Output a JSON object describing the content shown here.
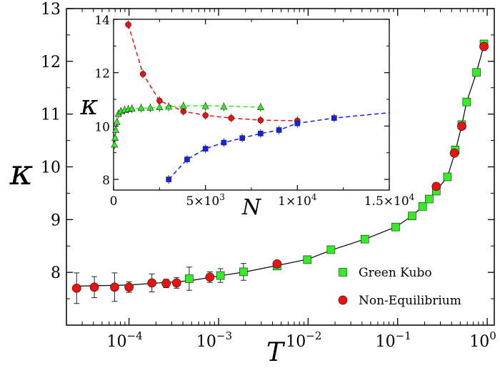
{
  "chart_data": [
    {
      "type": "scatter",
      "xscale": "log",
      "xlim": [
        2e-05,
        1.2
      ],
      "ylim": [
        7.0,
        13.0
      ],
      "xlabel": "T",
      "ylabel": "κ",
      "yticks": [
        "8",
        "9",
        "10",
        "11",
        "12",
        "13"
      ],
      "xticks": [
        {
          "base": "10",
          "exp": "−4",
          "value": 0.0001
        },
        {
          "base": "10",
          "exp": "−3",
          "value": 0.001
        },
        {
          "base": "10",
          "exp": "−2",
          "value": 0.01
        },
        {
          "base": "10",
          "exp": "−1",
          "value": 0.1
        },
        {
          "base": "10",
          "exp": "0",
          "value": 1
        }
      ],
      "legend_position": "bottom-right",
      "series": [
        {
          "name": "Green Kubo",
          "marker": "square",
          "color": "#33ee22",
          "points": [
            [
              0.00047,
              7.88,
              0.22
            ],
            [
              0.00105,
              7.94,
              0.13
            ],
            [
              0.0019,
              8.01,
              0.16
            ],
            [
              0.0045,
              8.12,
              0.07
            ],
            [
              0.0098,
              8.24,
              0.07
            ],
            [
              0.018,
              8.43,
              0.05
            ],
            [
              0.043,
              8.63,
              0.05
            ],
            [
              0.095,
              8.86,
              0.05
            ],
            [
              0.145,
              9.07,
              0.05
            ],
            [
              0.19,
              9.25,
              0.05
            ],
            [
              0.225,
              9.39,
              0.05
            ],
            [
              0.27,
              9.54,
              0.05
            ],
            [
              0.36,
              9.81,
              0.05
            ],
            [
              0.44,
              10.32,
              0.05
            ],
            [
              0.52,
              10.8,
              0.05
            ],
            [
              0.59,
              11.23,
              0.05
            ],
            [
              0.76,
              11.79,
              0.05
            ],
            [
              0.92,
              12.33,
              0.05
            ]
          ]
        },
        {
          "name": "Non-Equilibrium",
          "marker": "circle",
          "color": "#ee1111",
          "points": [
            [
              2.6e-05,
              7.7,
              0.29
            ],
            [
              4.1e-05,
              7.72,
              0.2
            ],
            [
              6.9e-05,
              7.72,
              0.27
            ],
            [
              0.0001,
              7.72,
              0.1
            ],
            [
              0.00018,
              7.8,
              0.17
            ],
            [
              0.00026,
              7.79,
              0.08
            ],
            [
              0.00034,
              7.8,
              0.1
            ],
            [
              0.0008,
              7.91,
              0.1
            ],
            [
              0.0045,
              8.16,
              0.05
            ],
            [
              0.27,
              9.63,
              0.05
            ],
            [
              0.43,
              10.26,
              0.05
            ],
            [
              0.52,
              10.77,
              0.05
            ],
            [
              0.92,
              12.28,
              0.05
            ]
          ]
        }
      ],
      "curve": [
        [
          2.6e-05,
          7.74
        ],
        [
          0.0001,
          7.76
        ],
        [
          0.00047,
          7.84
        ],
        [
          0.001,
          7.93
        ],
        [
          0.002,
          8.01
        ],
        [
          0.0045,
          8.13
        ],
        [
          0.01,
          8.25
        ],
        [
          0.018,
          8.42
        ],
        [
          0.043,
          8.63
        ],
        [
          0.095,
          8.86
        ],
        [
          0.145,
          9.07
        ],
        [
          0.19,
          9.25
        ],
        [
          0.225,
          9.39
        ],
        [
          0.27,
          9.55
        ],
        [
          0.36,
          9.81
        ],
        [
          0.44,
          10.29
        ],
        [
          0.52,
          10.79
        ],
        [
          0.59,
          11.23
        ],
        [
          0.76,
          11.79
        ],
        [
          0.92,
          12.31
        ]
      ]
    },
    {
      "type": "line",
      "xlim": [
        0,
        15000
      ],
      "ylim": [
        7.6,
        14.0
      ],
      "xlabel": "N",
      "ylabel": "κ",
      "yticks": [
        "8",
        "10",
        "12",
        "14"
      ],
      "xticks": [
        {
          "label": "0",
          "value": 0
        },
        {
          "label": "5×10",
          "sup": "3",
          "value": 5000
        },
        {
          "label": "1×10",
          "sup": "4",
          "value": 10000
        },
        {
          "label": "1.5×10",
          "sup": "4",
          "value": 15000
        }
      ],
      "series": [
        {
          "marker": "circle",
          "color": "#ee1111",
          "points": [
            [
              800,
              13.8
            ],
            [
              1600,
              11.95
            ],
            [
              2500,
              10.95
            ],
            [
              3800,
              10.55
            ],
            [
              5000,
              10.4
            ],
            [
              6400,
              10.3
            ],
            [
              8000,
              10.22
            ],
            [
              10000,
              10.2
            ]
          ]
        },
        {
          "marker": "triangle",
          "color": "#33ee22",
          "points": [
            [
              50,
              9.3
            ],
            [
              80,
              9.55
            ],
            [
              120,
              9.85
            ],
            [
              180,
              10.15
            ],
            [
              260,
              10.45
            ],
            [
              400,
              10.55
            ],
            [
              600,
              10.6
            ],
            [
              800,
              10.63
            ],
            [
              1000,
              10.65
            ],
            [
              1500,
              10.67
            ],
            [
              2000,
              10.68
            ],
            [
              2500,
              10.7
            ],
            [
              3000,
              10.72
            ],
            [
              3800,
              10.75
            ],
            [
              5000,
              10.74
            ],
            [
              6000,
              10.72
            ],
            [
              8000,
              10.7
            ]
          ]
        },
        {
          "marker": "square",
          "color": "#1122ee",
          "points": [
            [
              3000,
              8.0
            ],
            [
              4000,
              8.75
            ],
            [
              5000,
              9.15
            ],
            [
              6000,
              9.38
            ],
            [
              7000,
              9.55
            ],
            [
              8000,
              9.72
            ],
            [
              9000,
              9.85
            ],
            [
              10000,
              10.1
            ],
            [
              12000,
              10.3
            ]
          ]
        }
      ],
      "dashed_lines": [
        {
          "color": "#ee1111",
          "points": [
            [
              800,
              13.8
            ],
            [
              1600,
              11.95
            ],
            [
              2500,
              10.95
            ],
            [
              3800,
              10.55
            ],
            [
              5000,
              10.4
            ],
            [
              6400,
              10.3
            ],
            [
              8000,
              10.22
            ],
            [
              10000,
              10.2
            ]
          ]
        },
        {
          "color": "#33ee22",
          "points": [
            [
              50,
              9.3
            ],
            [
              120,
              9.85
            ],
            [
              260,
              10.45
            ],
            [
              600,
              10.6
            ],
            [
              1000,
              10.65
            ],
            [
              2500,
              10.7
            ],
            [
              3800,
              10.75
            ],
            [
              5000,
              10.76
            ],
            [
              6400,
              10.74
            ],
            [
              8000,
              10.7
            ]
          ]
        },
        {
          "color": "#1122ee",
          "points": [
            [
              3000,
              8.0
            ],
            [
              4000,
              8.75
            ],
            [
              5000,
              9.15
            ],
            [
              6000,
              9.38
            ],
            [
              7000,
              9.55
            ],
            [
              8000,
              9.72
            ],
            [
              9000,
              9.85
            ],
            [
              10000,
              10.1
            ],
            [
              12000,
              10.3
            ],
            [
              15000,
              10.5
            ]
          ]
        }
      ]
    }
  ]
}
